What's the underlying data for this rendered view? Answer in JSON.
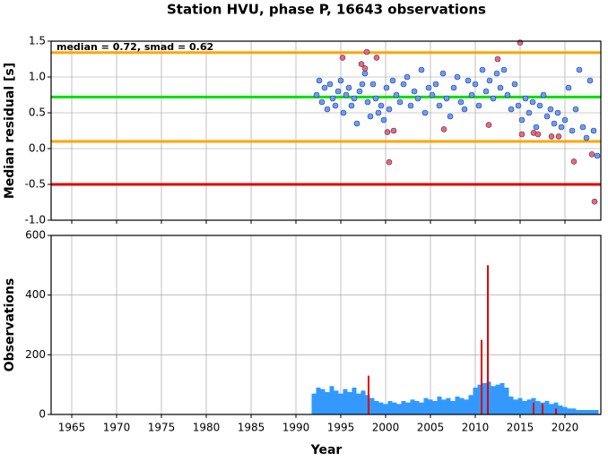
{
  "chart_data": [
    {
      "type": "scatter",
      "title": "Station HVU, phase P, 16643 observations",
      "y_label": "Median residual [s]",
      "annotation": "median = 0.72, smad = 0.62",
      "xlim": [
        1962.7,
        2024
      ],
      "xticks": [
        1965,
        1970,
        1975,
        1980,
        1985,
        1990,
        1995,
        2000,
        2005,
        2010,
        2015,
        2020
      ],
      "ylim": [
        -1.0,
        1.5
      ],
      "yticks": [
        {
          "value": -1.0,
          "label": "-1.0"
        },
        {
          "value": -0.5,
          "label": "-0.5"
        },
        {
          "value": 0,
          "label": "0.0"
        },
        {
          "value": 0.5,
          "label": "0.5"
        },
        {
          "value": 1.0,
          "label": "1.0"
        },
        1.5
      ],
      "grid": true,
      "hlines": [
        {
          "value": 1.34,
          "color": "#ffa500"
        },
        {
          "value": 0.72,
          "color": "#00e000"
        },
        {
          "value": 0.1,
          "color": "#ffa500"
        },
        {
          "value": -0.5,
          "color": "#e00000"
        }
      ],
      "series": [
        {
          "color": "#6f9cf2",
          "x": [
            1992.3,
            1992.6,
            1992.9,
            1993.2,
            1993.5,
            1993.8,
            1994.1,
            1994.4,
            1994.7,
            1995.0,
            1995.3,
            1995.6,
            1995.9,
            1996.2,
            1996.5,
            1996.8,
            1997.1,
            1997.4,
            1997.7,
            1998.0,
            1998.3,
            1998.6,
            1998.9,
            1999.2,
            1999.5,
            1999.8,
            2000.1,
            2000.4,
            2000.8,
            2001.2,
            2001.6,
            2002.0,
            2002.4,
            2002.8,
            2003.2,
            2003.6,
            2004.0,
            2004.4,
            2004.8,
            2005.2,
            2005.6,
            2006.0,
            2006.4,
            2006.8,
            2007.2,
            2007.6,
            2008.0,
            2008.4,
            2008.8,
            2009.2,
            2009.6,
            2010.0,
            2010.4,
            2010.8,
            2011.2,
            2011.6,
            2012.0,
            2012.4,
            2012.8,
            2013.2,
            2013.6,
            2014.0,
            2014.4,
            2014.8,
            2015.2,
            2015.6,
            2016.0,
            2016.4,
            2016.8,
            2017.2,
            2017.6,
            2018.0,
            2018.4,
            2018.8,
            2019.2,
            2019.6,
            2020.0,
            2020.4,
            2020.8,
            2021.2,
            2021.6,
            2022.0,
            2022.4,
            2022.8,
            2023.2,
            2023.6
          ],
          "values": [
            0.75,
            0.95,
            0.65,
            0.85,
            0.55,
            0.9,
            0.7,
            0.6,
            0.8,
            0.95,
            0.5,
            0.75,
            0.85,
            0.6,
            0.7,
            0.35,
            0.8,
            0.9,
            1.05,
            0.65,
            0.45,
            0.9,
            0.7,
            0.5,
            0.6,
            0.4,
            0.85,
            0.55,
            0.95,
            0.75,
            0.65,
            0.9,
            1.0,
            0.6,
            0.8,
            0.7,
            1.1,
            0.5,
            0.85,
            0.75,
            0.9,
            0.6,
            1.05,
            0.7,
            0.45,
            0.85,
            1.0,
            0.65,
            0.55,
            0.95,
            0.75,
            0.9,
            0.6,
            1.1,
            0.8,
            0.95,
            0.7,
            1.05,
            0.85,
            1.1,
            0.75,
            0.55,
            0.9,
            0.6,
            0.4,
            0.7,
            0.5,
            0.65,
            0.3,
            0.6,
            0.75,
            0.45,
            0.55,
            0.35,
            0.5,
            0.3,
            0.4,
            0.85,
            0.25,
            0.55,
            1.1,
            0.3,
            0.15,
            0.95,
            0.25,
            -0.1
          ]
        },
        {
          "color": "#ff6464",
          "x": [
            1995.2,
            1997.3,
            1997.7,
            1997.9,
            1999.0,
            2000.2,
            2000.4,
            2000.9,
            2006.5,
            2011.5,
            2012.5,
            2015.0,
            2015.2,
            2016.5,
            2017.0,
            2018.5,
            2019.3,
            2021.0,
            2023.0,
            2023.3
          ],
          "values": [
            1.27,
            1.18,
            1.12,
            1.35,
            1.27,
            0.23,
            -0.19,
            0.25,
            0.27,
            0.33,
            1.25,
            1.48,
            0.2,
            0.22,
            0.2,
            0.17,
            0.17,
            -0.18,
            -0.08,
            -0.74
          ]
        }
      ]
    },
    {
      "type": "bar",
      "x_label": "Year",
      "y_label": "Observations",
      "xlim": [
        1962.7,
        2024
      ],
      "xticks": [
        1965,
        1970,
        1975,
        1980,
        1985,
        1990,
        1995,
        2000,
        2005,
        2010,
        2015,
        2020
      ],
      "ylim": [
        0,
        600
      ],
      "yticks": [
        0,
        200,
        400,
        600
      ],
      "grid": true,
      "series": [
        {
          "color": "#3399ff",
          "x": [
            1992.0,
            1992.5,
            1993.0,
            1993.5,
            1994.0,
            1994.5,
            1995.0,
            1995.5,
            1996.0,
            1996.5,
            1997.0,
            1997.5,
            1998.0,
            1998.5,
            1999.0,
            1999.5,
            2000.0,
            2000.5,
            2001.0,
            2001.5,
            2002.0,
            2002.5,
            2003.0,
            2003.5,
            2004.0,
            2004.5,
            2005.0,
            2005.5,
            2006.0,
            2006.5,
            2007.0,
            2007.5,
            2008.0,
            2008.5,
            2009.0,
            2009.5,
            2010.0,
            2010.5,
            2011.0,
            2011.5,
            2012.0,
            2012.5,
            2013.0,
            2013.5,
            2014.0,
            2014.5,
            2015.0,
            2015.5,
            2016.0,
            2016.5,
            2017.0,
            2017.5,
            2018.0,
            2018.5,
            2019.0,
            2019.5,
            2020.0,
            2020.5,
            2021.0,
            2021.5,
            2022.0,
            2022.5,
            2023.0,
            2023.5
          ],
          "values": [
            70,
            90,
            85,
            75,
            95,
            80,
            70,
            85,
            75,
            90,
            70,
            80,
            65,
            55,
            45,
            40,
            35,
            45,
            40,
            35,
            45,
            40,
            50,
            45,
            40,
            55,
            50,
            45,
            60,
            50,
            55,
            45,
            60,
            55,
            50,
            65,
            90,
            100,
            105,
            110,
            95,
            100,
            105,
            90,
            60,
            50,
            55,
            45,
            50,
            55,
            45,
            40,
            45,
            35,
            40,
            30,
            25,
            20,
            20,
            15,
            15,
            15,
            15,
            15
          ]
        },
        {
          "color": "#e00000",
          "x": [
            1998.1,
            2010.7,
            2011.4,
            2016.5,
            2017.5,
            2019.0
          ],
          "values": [
            130,
            250,
            500,
            40,
            35,
            20
          ]
        }
      ]
    }
  ]
}
